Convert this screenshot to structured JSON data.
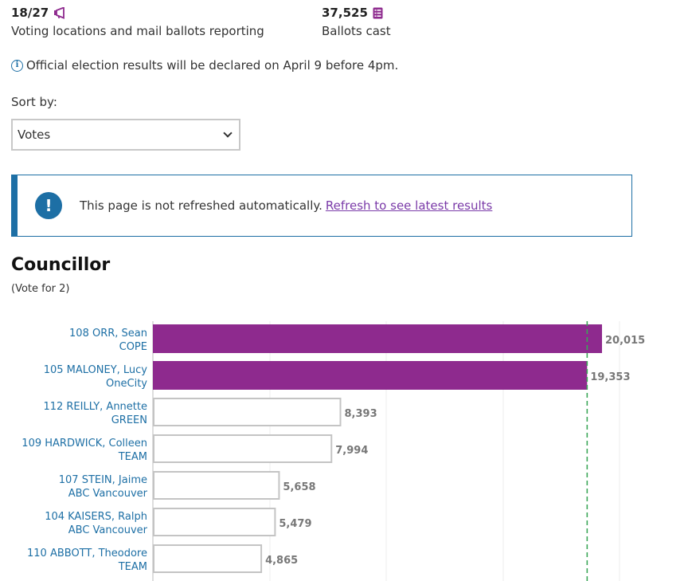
{
  "stats": {
    "reporting": {
      "value": "18/27",
      "label": "Voting locations and mail ballots reporting",
      "icon": "megaphone-icon"
    },
    "ballots": {
      "value": "37,525",
      "label": "Ballots cast",
      "icon": "list-icon"
    }
  },
  "notice": {
    "text": "Official election results will be declared on April 9 before 4pm.",
    "icon": "info-icon"
  },
  "sort": {
    "label": "Sort by:",
    "selected": "Votes"
  },
  "alert": {
    "text": "This page is not refreshed automatically.",
    "link_text": "Refresh to see latest results",
    "icon": "exclamation-icon"
  },
  "section": {
    "title": "Councillor",
    "subtitle": "(Vote for 2)"
  },
  "colors": {
    "accent": "#8e2a8e",
    "link": "#1d6fa5",
    "threshold": "#3aa757"
  },
  "chart_data": {
    "type": "bar",
    "orientation": "horizontal",
    "categories": [
      "108 ORR, Sean|COPE",
      "105 MALONEY, Lucy|OneCity",
      "112 REILLY, Annette|GREEN",
      "109 HARDWICK, Colleen|TEAM",
      "107 STEIN, Jaime|ABC Vancouver",
      "104 KAISERS, Ralph|ABC Vancouver",
      "110 ABBOTT, Theodore|TEAM"
    ],
    "candidates": [
      {
        "name": "108 ORR, Sean",
        "party": "COPE",
        "votes": 20015,
        "votes_label": "20,015",
        "elected": true
      },
      {
        "name": "105 MALONEY, Lucy",
        "party": "OneCity",
        "votes": 19353,
        "votes_label": "19,353",
        "elected": true
      },
      {
        "name": "112 REILLY, Annette",
        "party": "GREEN",
        "votes": 8393,
        "votes_label": "8,393",
        "elected": false
      },
      {
        "name": "109 HARDWICK, Colleen",
        "party": "TEAM",
        "votes": 7994,
        "votes_label": "7,994",
        "elected": false
      },
      {
        "name": "107 STEIN, Jaime",
        "party": "ABC Vancouver",
        "votes": 5658,
        "votes_label": "5,658",
        "elected": false
      },
      {
        "name": "104 KAISERS, Ralph",
        "party": "ABC Vancouver",
        "votes": 5479,
        "votes_label": "5,479",
        "elected": false
      },
      {
        "name": "110 ABBOTT, Theodore",
        "party": "TEAM",
        "votes": 4865,
        "votes_label": "4,865",
        "elected": false
      }
    ],
    "xlim": [
      0,
      22000
    ],
    "threshold_votes": 19353,
    "grid": true
  }
}
